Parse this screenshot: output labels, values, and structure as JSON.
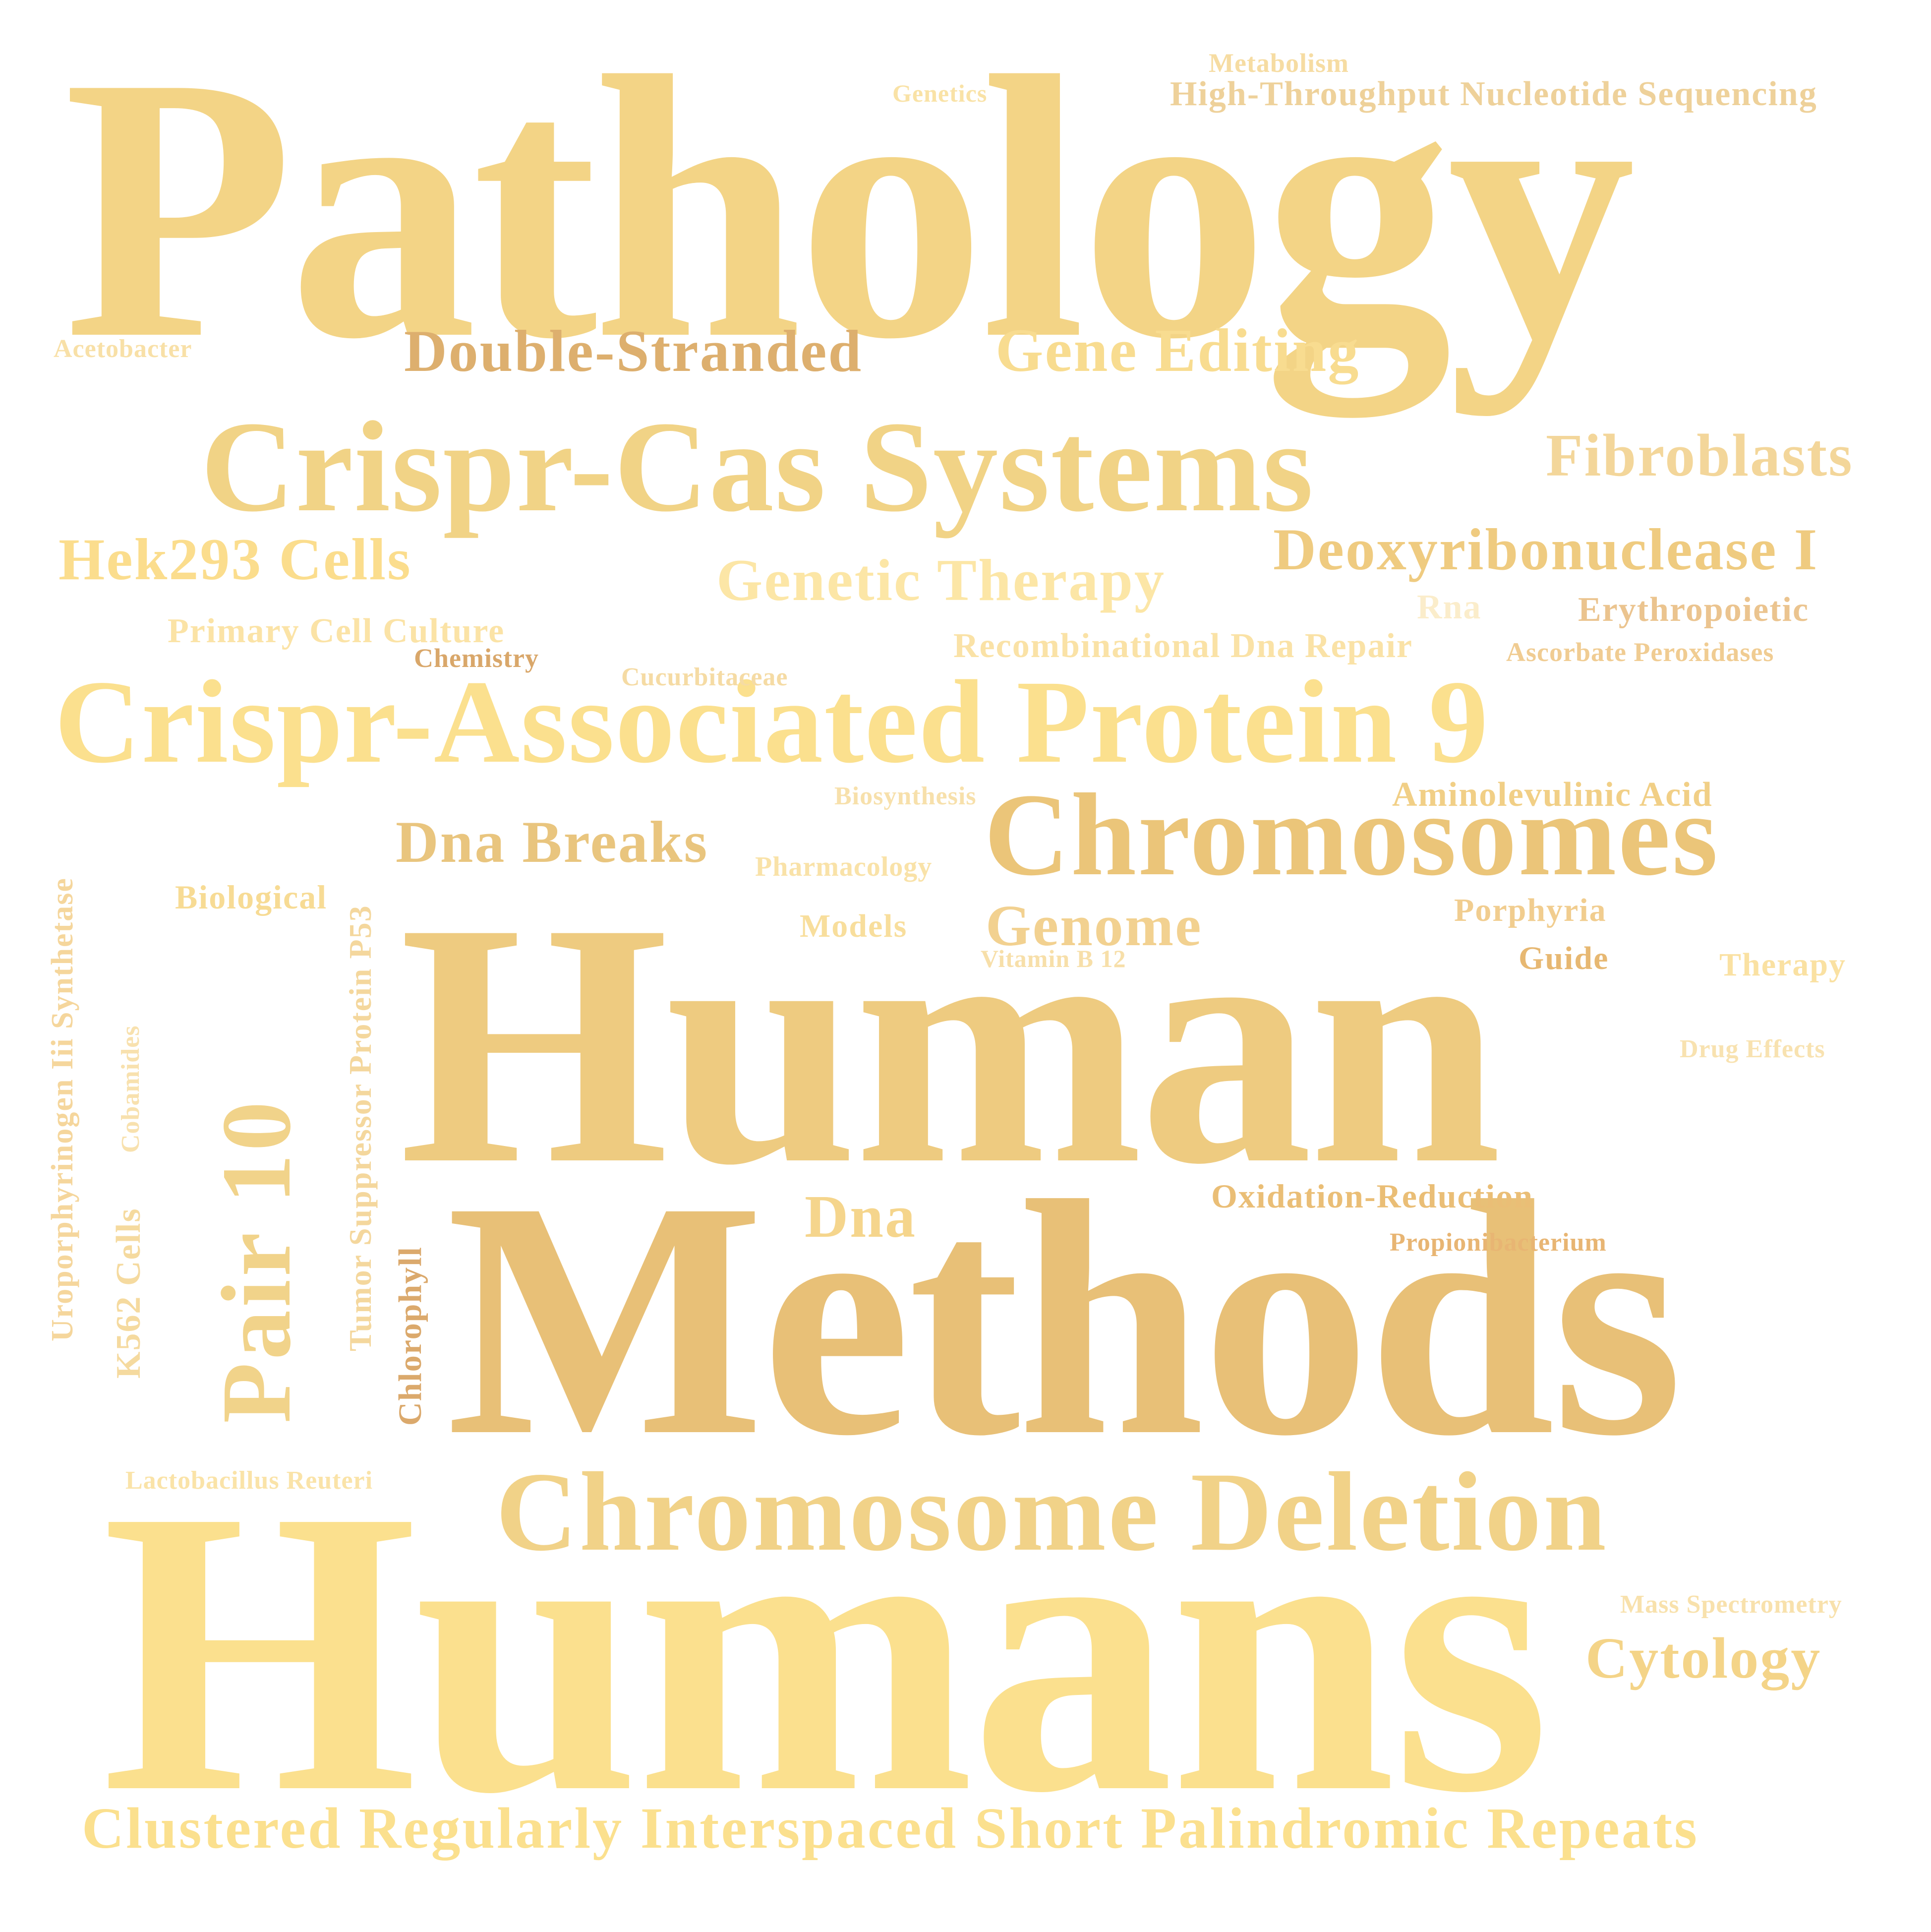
{
  "word_cloud": {
    "words": [
      {
        "key": "pathology",
        "text": "Pathology",
        "color": "#F3D486"
      },
      {
        "key": "humans",
        "text": "Humans",
        "color": "#FBE08E"
      },
      {
        "key": "human",
        "text": "Human",
        "color": "#EECB80"
      },
      {
        "key": "methods",
        "text": "Methods",
        "color": "#E8C077"
      },
      {
        "key": "crispr_associated_protein_9",
        "text": "Crispr-Associated Protein 9",
        "color": "#FBE08E"
      },
      {
        "key": "crispr_cas_systems",
        "text": "Crispr-Cas Systems",
        "color": "#F1D386"
      },
      {
        "key": "chromosomes",
        "text": "Chromosomes",
        "color": "#EBC579"
      },
      {
        "key": "chromosome_deletion",
        "text": "Chromosome Deletion",
        "color": "#F1D288"
      },
      {
        "key": "pair_10",
        "text": "Pair 10",
        "color": "#F1D38A"
      },
      {
        "key": "clustered_repeats",
        "text": "Clustered Regularly Interspaced Short Palindromic Repeats",
        "color": "#FBE08E"
      },
      {
        "key": "double_stranded",
        "text": "Double-Stranded",
        "color": "#DDAF6E"
      },
      {
        "key": "gene_editing",
        "text": "Gene Editing",
        "color": "#F8DC90"
      },
      {
        "key": "fibroblasts",
        "text": "Fibroblasts",
        "color": "#F3D69A"
      },
      {
        "key": "deoxyribonuclease_i",
        "text": "Deoxyribonuclease I",
        "color": "#EFCB80"
      },
      {
        "key": "hek293_cells",
        "text": "Hek293 Cells",
        "color": "#FBDD8D"
      },
      {
        "key": "genetic_therapy",
        "text": "Genetic Therapy",
        "color": "#FCE6A6"
      },
      {
        "key": "dna_breaks",
        "text": "Dna Breaks",
        "color": "#E9C57E"
      },
      {
        "key": "genome",
        "text": "Genome",
        "color": "#F2D190"
      },
      {
        "key": "dna",
        "text": "Dna",
        "color": "#F5D58C"
      },
      {
        "key": "cytology",
        "text": "Cytology",
        "color": "#F4D488"
      },
      {
        "key": "metabolism",
        "text": "Metabolism",
        "color": "#F6DCA2"
      },
      {
        "key": "genetics",
        "text": "Genetics",
        "color": "#F9E2A6"
      },
      {
        "key": "high_throughput",
        "text": "High-Throughput Nucleotide Sequencing",
        "color": "#EED19A"
      },
      {
        "key": "acetobacter",
        "text": "Acetobacter",
        "color": "#F8E0A7"
      },
      {
        "key": "primary_cell_culture",
        "text": "Primary Cell Culture",
        "color": "#FBE3A6"
      },
      {
        "key": "chemistry",
        "text": "Chemistry",
        "color": "#D9A76A"
      },
      {
        "key": "cucurbitaceae",
        "text": "Cucurbitaceae",
        "color": "#F5DBA4"
      },
      {
        "key": "recombinational",
        "text": "Recombinational Dna Repair",
        "color": "#FAE2A6"
      },
      {
        "key": "rna",
        "text": "Rna",
        "color": "#FBEDCB"
      },
      {
        "key": "erythropoietic",
        "text": "Erythropoietic",
        "color": "#EBC48F"
      },
      {
        "key": "ascorbate",
        "text": "Ascorbate Peroxidases",
        "color": "#F0CC92"
      },
      {
        "key": "biosynthesis",
        "text": "Biosynthesis",
        "color": "#F7E0AB"
      },
      {
        "key": "aminolevulinic",
        "text": "Aminolevulinic Acid",
        "color": "#F1CF86"
      },
      {
        "key": "pharmacology",
        "text": "Pharmacology",
        "color": "#F9E2A8"
      },
      {
        "key": "biological",
        "text": "Biological",
        "color": "#F7DB94"
      },
      {
        "key": "models",
        "text": "Models",
        "color": "#F8DE9C"
      },
      {
        "key": "vitamin_b12",
        "text": "Vitamin B 12",
        "color": "#F7DFA9"
      },
      {
        "key": "porphyria",
        "text": "Porphyria",
        "color": "#F1CD8F"
      },
      {
        "key": "guide",
        "text": "Guide",
        "color": "#E7B872"
      },
      {
        "key": "therapy",
        "text": "Therapy",
        "color": "#FAE1A2"
      },
      {
        "key": "drug_effects",
        "text": "Drug Effects",
        "color": "#F8E2B0"
      },
      {
        "key": "oxidation_reduction",
        "text": "Oxidation-Reduction",
        "color": "#EABE76"
      },
      {
        "key": "propionibacterium",
        "text": "Propionibacterium",
        "color": "#E8B573"
      },
      {
        "key": "lactobacillus",
        "text": "Lactobacillus Reuteri",
        "color": "#FAE3A8"
      },
      {
        "key": "mass_spectrometry",
        "text": "Mass Spectrometry",
        "color": "#F8E1AC"
      },
      {
        "key": "uroporphyrinogen",
        "text": "Uroporphyrinogen Iii Synthetase",
        "color": "#F5D69C"
      },
      {
        "key": "k562_cells",
        "text": "K562 Cells",
        "color": "#F5DA9F"
      },
      {
        "key": "cobamides",
        "text": "Cobamides",
        "color": "#F8E1AE"
      },
      {
        "key": "tumor_suppressor",
        "text": "Tumor Suppressor Protein P53",
        "color": "#F4D79D"
      },
      {
        "key": "chlorophyll",
        "text": "Chlorophyll",
        "color": "#DBA96C"
      }
    ]
  }
}
